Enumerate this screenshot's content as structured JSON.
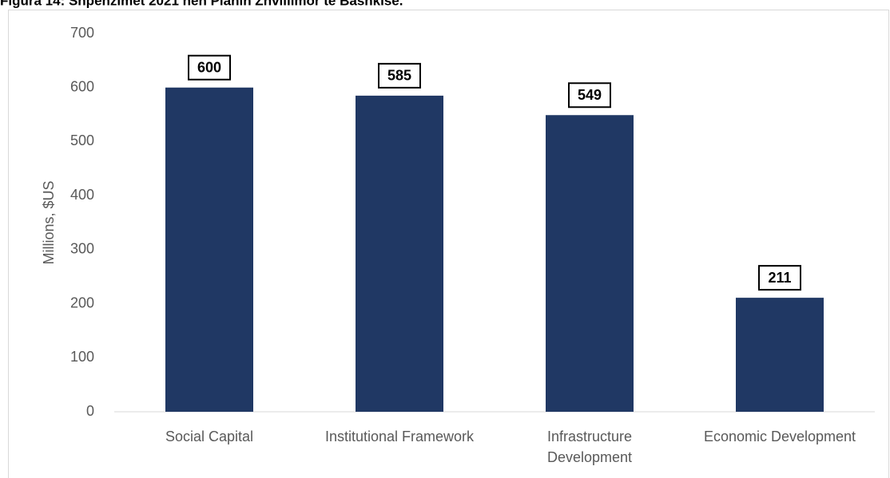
{
  "chart_data": {
    "type": "bar",
    "title": "Figura 14: Shpenzimet 2021 nën Planin Zhvillimor të Bashkisë.",
    "y_label": "Millions,  $US",
    "categories": [
      "Social Capital",
      "Institutional Framework",
      "Infrastructure\nDevelopment",
      "Economic Development"
    ],
    "values": [
      600,
      585,
      549,
      211
    ],
    "color": "#203864",
    "ylim": [
      0,
      700
    ],
    "yticks": [
      0,
      100,
      200,
      300,
      400,
      500,
      600,
      700
    ],
    "grid": false
  }
}
